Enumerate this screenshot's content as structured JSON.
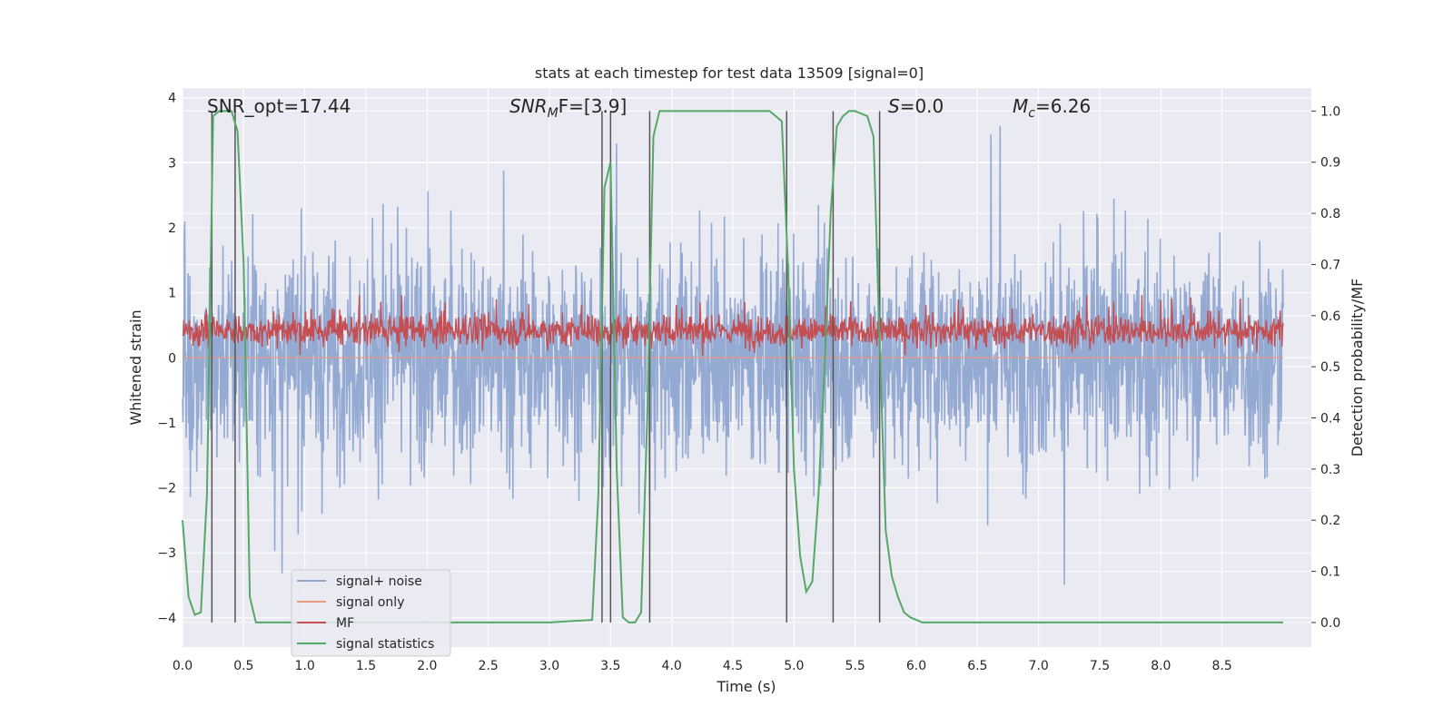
{
  "chart_data": {
    "type": "line",
    "title": "stats at each timestep for test data 13509 [signal=0]",
    "xlabel": "Time (s)",
    "ylabel_left": "Whitened strain",
    "ylabel_right": "Detection probability/MF",
    "xlim": [
      0,
      9.0
    ],
    "ylim_left": [
      -4.45,
      4.15
    ],
    "ylim_right": [
      -0.048,
      1.045
    ],
    "x_ticks": [
      "0.0",
      "0.5",
      "1.0",
      "1.5",
      "2.0",
      "2.5",
      "3.0",
      "3.5",
      "4.0",
      "4.5",
      "5.0",
      "5.5",
      "6.0",
      "6.5",
      "7.0",
      "7.5",
      "8.0",
      "8.5"
    ],
    "y_left_ticks": [
      "4",
      "3",
      "2",
      "1",
      "0",
      "−1",
      "−2",
      "−3",
      "−4"
    ],
    "y_right_ticks": [
      "1.0",
      "0.9",
      "0.8",
      "0.7",
      "0.6",
      "0.5",
      "0.4",
      "0.3",
      "0.2",
      "0.1",
      "0.0"
    ],
    "grid": true,
    "legend_location": "lower-left",
    "annotations": {
      "snr_opt": "SNR_opt=17.44",
      "snr_mf_base": "SNR",
      "snr_mf_sub": "M",
      "snr_mf_rest": "F=[3.9]",
      "s_italic": "S",
      "s_rest": "=0.0",
      "mc_base": "M",
      "mc_sub": "c",
      "mc_rest": "=6.26"
    },
    "series": [
      {
        "name": "signal+ noise",
        "color": "#8fa6d1",
        "axis": "left",
        "description": "broadband whitened noise, roughly symmetric about 0, excursions up to about ±3.5"
      },
      {
        "name": "signal only",
        "color": "#e99a7e",
        "axis": "left",
        "values_constant": 0
      },
      {
        "name": "MF",
        "color": "#c44e52",
        "axis": "right",
        "range_approx": [
          0.52,
          0.64
        ]
      },
      {
        "name": "signal statistics",
        "color": "#55a868",
        "axis": "right",
        "x": [
          0.0,
          0.05,
          0.1,
          0.15,
          0.2,
          0.25,
          0.3,
          0.35,
          0.4,
          0.45,
          0.5,
          0.55,
          0.6,
          1.0,
          2.0,
          3.0,
          3.35,
          3.4,
          3.45,
          3.5,
          3.55,
          3.6,
          3.65,
          3.7,
          3.75,
          3.8,
          3.85,
          3.9,
          4.0,
          4.5,
          4.8,
          4.9,
          4.95,
          5.0,
          5.05,
          5.1,
          5.15,
          5.2,
          5.25,
          5.3,
          5.35,
          5.4,
          5.45,
          5.5,
          5.6,
          5.65,
          5.7,
          5.75,
          5.8,
          5.85,
          5.9,
          5.95,
          6.0,
          6.05,
          6.5,
          7.0,
          8.0,
          9.0
        ],
        "values": [
          0.2,
          0.05,
          0.015,
          0.02,
          0.25,
          0.99,
          1.0,
          1.0,
          1.0,
          0.96,
          0.7,
          0.05,
          0.0,
          0.0,
          0.0,
          0.0,
          0.005,
          0.25,
          0.85,
          0.9,
          0.3,
          0.01,
          0.0,
          0.0,
          0.02,
          0.4,
          0.95,
          1.0,
          1.0,
          1.0,
          1.0,
          0.98,
          0.7,
          0.3,
          0.13,
          0.06,
          0.08,
          0.25,
          0.5,
          0.8,
          0.97,
          0.99,
          1.0,
          1.0,
          0.99,
          0.95,
          0.55,
          0.18,
          0.09,
          0.05,
          0.02,
          0.01,
          0.005,
          0.0,
          0.0,
          0.0,
          0.0,
          0.0
        ]
      }
    ],
    "vertical_markers_x": [
      0.24,
      0.43,
      3.43,
      3.5,
      3.82,
      4.94,
      5.32,
      5.7
    ]
  }
}
